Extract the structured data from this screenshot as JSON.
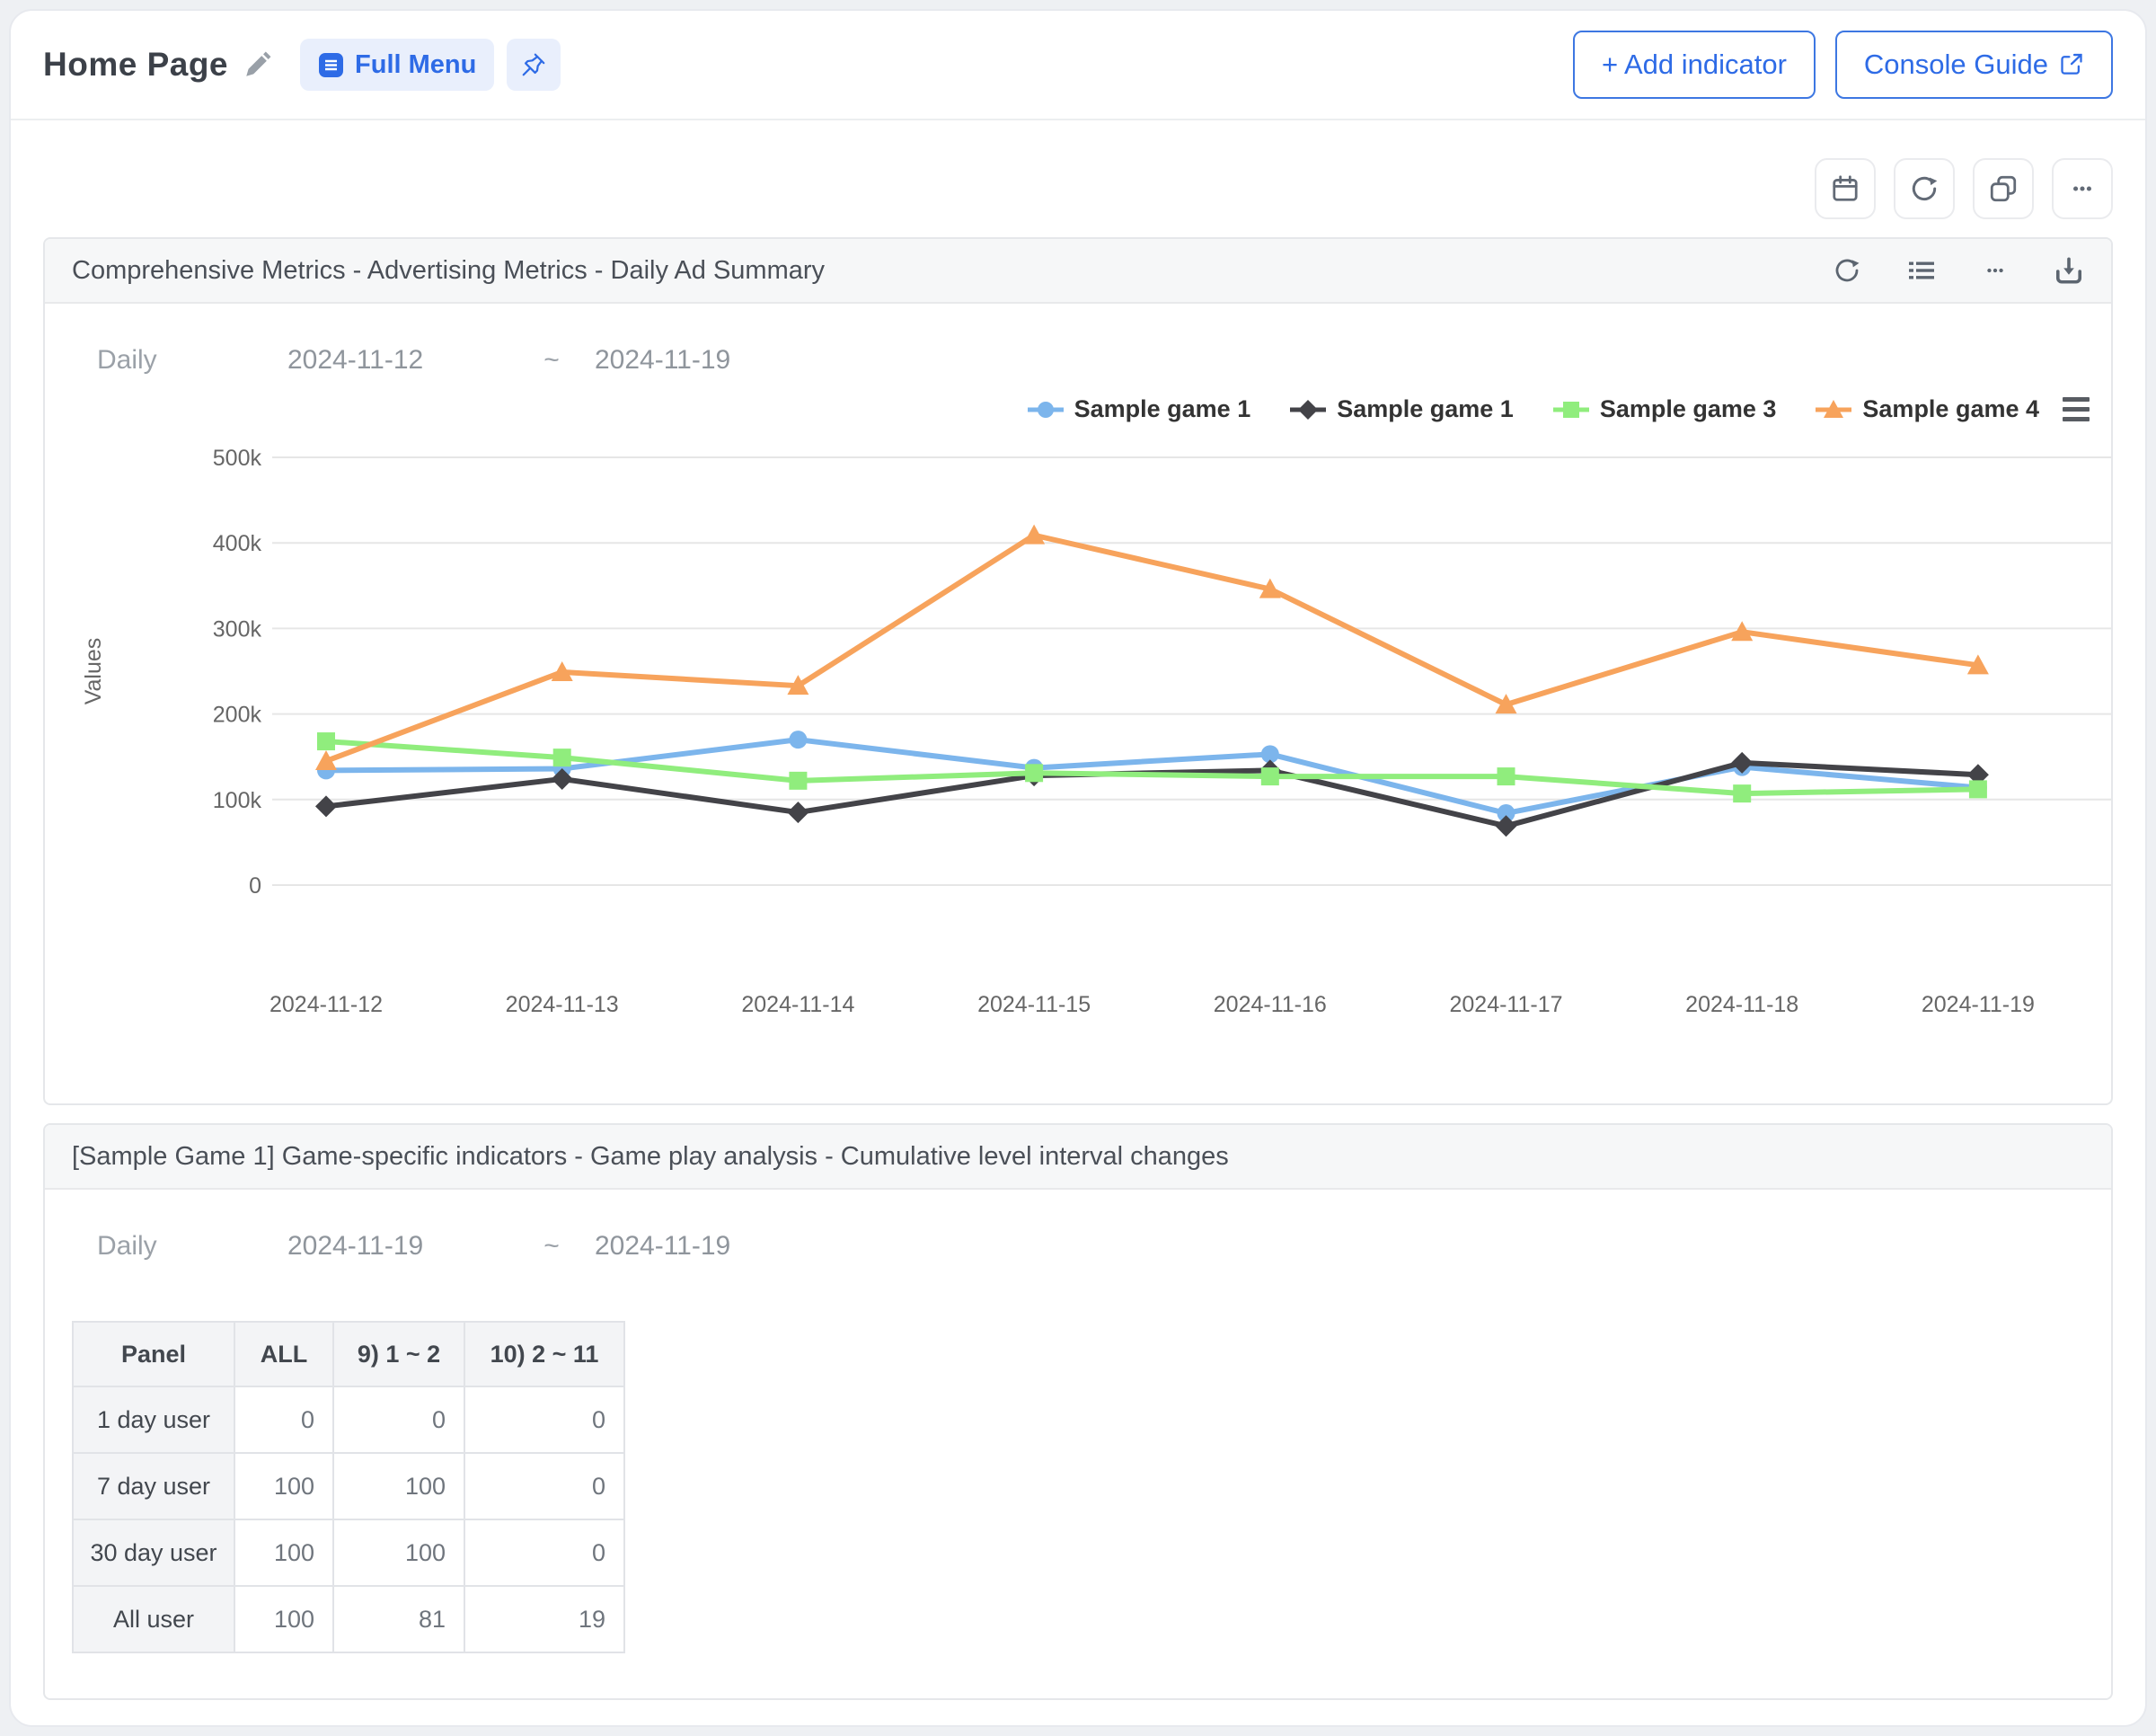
{
  "header": {
    "title": "Home Page",
    "full_menu_label": "Full Menu",
    "add_indicator_label": "+ Add indicator",
    "console_guide_label": "Console Guide"
  },
  "toolbar": {
    "icons": [
      "calendar",
      "refresh",
      "duplicate",
      "more"
    ]
  },
  "card1": {
    "title": "Comprehensive Metrics - Advertising Metrics - Daily Ad Summary",
    "header_icons": [
      "refresh",
      "list",
      "more",
      "download"
    ],
    "period_label": "Daily",
    "date_start": "2024-11-12",
    "tilde": "~",
    "date_end": "2024-11-19"
  },
  "chart_data": {
    "type": "line",
    "title": "",
    "xlabel": "",
    "ylabel": "Values",
    "x": [
      "2024-11-12",
      "2024-11-13",
      "2024-11-14",
      "2024-11-15",
      "2024-11-16",
      "2024-11-17",
      "2024-11-18",
      "2024-11-19"
    ],
    "series": [
      {
        "name": "Sample game 1",
        "color": "#7cb5ec",
        "marker": "circle",
        "values": [
          134000,
          136000,
          170000,
          137000,
          153000,
          84000,
          138000,
          114000
        ]
      },
      {
        "name": "Sample game 1",
        "color": "#434348",
        "marker": "diamond",
        "values": [
          92000,
          124000,
          85000,
          128000,
          134000,
          69000,
          143000,
          129000
        ]
      },
      {
        "name": "Sample game 3",
        "color": "#90ed7d",
        "marker": "square",
        "values": [
          168000,
          149000,
          122000,
          131000,
          127000,
          127000,
          107000,
          112000
        ]
      },
      {
        "name": "Sample game 4",
        "color": "#f7a35c",
        "marker": "triangle",
        "values": [
          145000,
          249000,
          233000,
          409000,
          346000,
          211000,
          296000,
          257000
        ]
      }
    ],
    "ylim": [
      0,
      500000
    ],
    "yticks": [
      0,
      100000,
      200000,
      300000,
      400000,
      500000
    ],
    "ytick_labels": [
      "0",
      "100k",
      "200k",
      "300k",
      "400k",
      "500k"
    ],
    "grid": true,
    "legend_position": "top-right"
  },
  "card2": {
    "title": "[Sample Game 1] Game-specific indicators - Game play analysis - Cumulative level interval changes",
    "period_label": "Daily",
    "date_start": "2024-11-19",
    "tilde": "~",
    "date_end": "2024-11-19",
    "table": {
      "headers": [
        "Panel",
        "ALL",
        "9) 1 ~ 2",
        "10) 2 ~ 11"
      ],
      "rows": [
        {
          "label": "1 day user",
          "values": [
            "0",
            "0",
            "0"
          ]
        },
        {
          "label": "7 day user",
          "values": [
            "100",
            "100",
            "0"
          ]
        },
        {
          "label": "30 day user",
          "values": [
            "100",
            "100",
            "0"
          ]
        },
        {
          "label": "All user",
          "values": [
            "100",
            "81",
            "19"
          ]
        }
      ]
    }
  },
  "colors": {
    "accent_blue": "#2e6be6",
    "chip_bg": "#e9effc",
    "card_header_bg": "#f6f7f8",
    "grid_line": "#e6e6e6",
    "app_bg": "#eef0f3"
  }
}
